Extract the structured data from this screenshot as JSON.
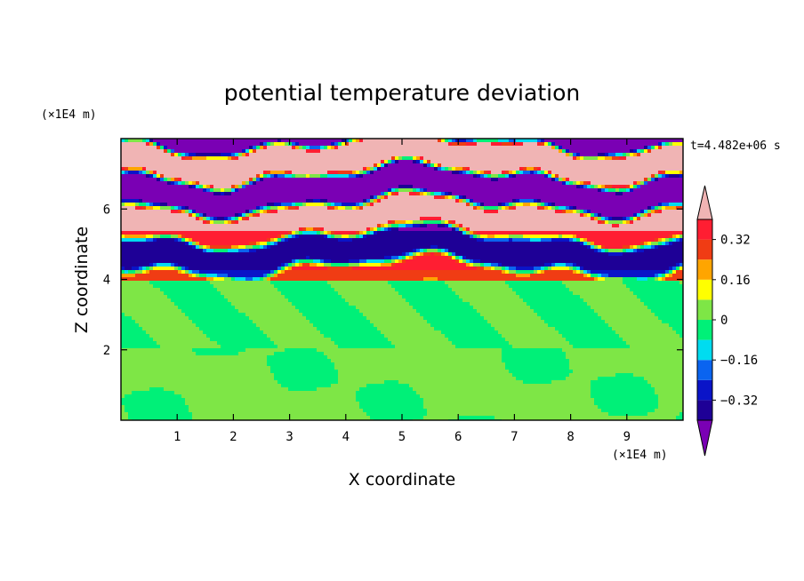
{
  "chart_data": {
    "type": "contour",
    "title": "potential temperature deviation",
    "xlabel": "X coordinate",
    "ylabel": "Z coordinate",
    "x_unit": "(×1E4 m)",
    "y_unit": "(×1E4 m)",
    "time_label": "t=4.482e+06 s",
    "xlim": [
      0,
      10
    ],
    "ylim": [
      0,
      8
    ],
    "xticks": [
      1,
      2,
      3,
      4,
      5,
      6,
      7,
      8,
      9
    ],
    "yticks": [
      2,
      4,
      6
    ],
    "colorbar": {
      "levels": [
        -0.4,
        -0.32,
        -0.24,
        -0.16,
        -0.08,
        0,
        0.08,
        0.16,
        0.24,
        0.32,
        0.4
      ],
      "tick_labels": [
        "0.32",
        "0.16",
        "0",
        "−0.16",
        "−0.32"
      ],
      "tick_values": [
        0.32,
        0.16,
        0,
        -0.16,
        -0.32
      ],
      "colors": [
        "#7a00b4",
        "#1e0096",
        "#0a14c8",
        "#0a64f0",
        "#00dcf0",
        "#00f078",
        "#7ee646",
        "#ffff00",
        "#ffa500",
        "#f03c14",
        "#ff1e32",
        "#f0b4b4"
      ]
    },
    "field_layers": [
      {
        "z_range": [
          0,
          2
        ],
        "level": 0.04,
        "note": "mostly weakly positive"
      },
      {
        "z_range": [
          2,
          4
        ],
        "level": 0.0,
        "note": "near zero"
      },
      {
        "z_range": [
          4,
          8
        ],
        "level": "alternating",
        "note": "banded strong positive/negative layers"
      }
    ]
  }
}
